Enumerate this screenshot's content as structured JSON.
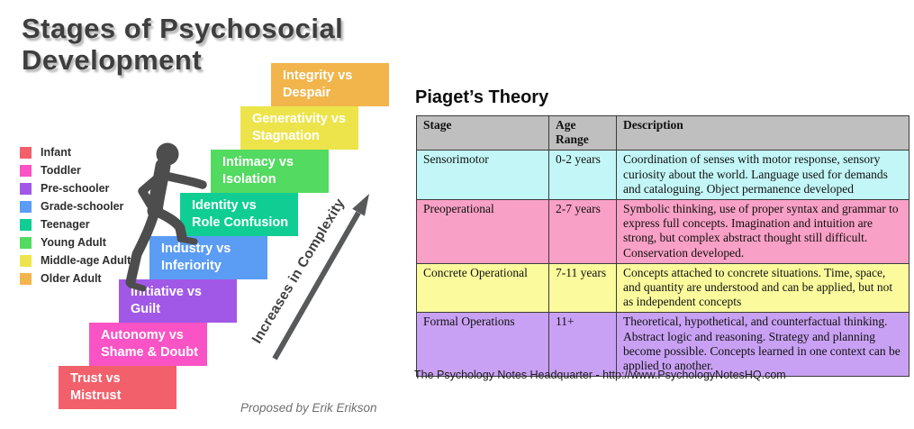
{
  "colors": {
    "background": "#ffffff",
    "title_text": "#3e3e3e",
    "figure": "#4d4d4d",
    "arrow": "#58595b",
    "table_border": "#3b3b3b",
    "table_header_bg": "#bfbfbf"
  },
  "left_panel": {
    "title": "Stages of Psychosocial\nDevelopment",
    "legend": [
      {
        "label": "Infant",
        "color": "#f2606b"
      },
      {
        "label": "Toddler",
        "color": "#f953c5"
      },
      {
        "label": "Pre-schooler",
        "color": "#a158e6"
      },
      {
        "label": "Grade-schooler",
        "color": "#5b9cf4"
      },
      {
        "label": "Teenager",
        "color": "#10ce93"
      },
      {
        "label": "Young Adult",
        "color": "#53da61"
      },
      {
        "label": "Middle-age Adult",
        "color": "#ede44c"
      },
      {
        "label": "Older Adult",
        "color": "#f2b54c"
      }
    ],
    "steps": [
      {
        "label": "Trust vs\nMistrust",
        "color": "#f2606b"
      },
      {
        "label": "Autonomy vs\nShame & Doubt",
        "color": "#f953c5"
      },
      {
        "label": "Initiative vs\nGuilt",
        "color": "#a158e6"
      },
      {
        "label": "Industry vs\nInferiority",
        "color": "#5b9cf4"
      },
      {
        "label": "Identity vs\nRole Confusion",
        "color": "#10ce93"
      },
      {
        "label": "Intimacy vs\nIsolation",
        "color": "#53da61"
      },
      {
        "label": "Generativity vs\nStagnation",
        "color": "#ede44c"
      },
      {
        "label": "Integrity vs\nDespair",
        "color": "#f2b54c"
      }
    ],
    "arrow_label": "Increases in Complexity",
    "caption": "Proposed by Erik Erikson",
    "person_icon": "walking-person"
  },
  "right_panel": {
    "title": "Piaget’s Theory",
    "table": {
      "headers": [
        "Stage",
        "Age Range",
        "Description"
      ],
      "rows": [
        {
          "stage": "Sensorimotor",
          "age_range": "0-2 years",
          "description": "Coordination of senses with motor response, sensory curiosity about the world. Language used for demands and cataloguing. Object permanence developed",
          "color": "#c3f6f7"
        },
        {
          "stage": "Preoperational",
          "age_range": "2-7 years",
          "description": "Symbolic thinking, use of proper syntax and grammar to express full concepts. Imagination and intuition are strong, but complex abstract thought still difficult. Conservation developed.",
          "color": "#f9a0c6"
        },
        {
          "stage": "Concrete Operational",
          "age_range": "7-11 years",
          "description": "Concepts attached to concrete situations. Time, space, and quantity are understood and can be applied, but not as independent concepts",
          "color": "#fbfb9d"
        },
        {
          "stage": "Formal Operations",
          "age_range": "11+",
          "description": "Theoretical, hypothetical, and counterfactual thinking. Abstract logic and reasoning. Strategy and planning become possible. Concepts learned in one context can be applied to another.",
          "color": "#c9a1f4"
        }
      ]
    },
    "footer": "The Psychology Notes Headquarter - http://www.PsychologyNotesHQ.com"
  }
}
